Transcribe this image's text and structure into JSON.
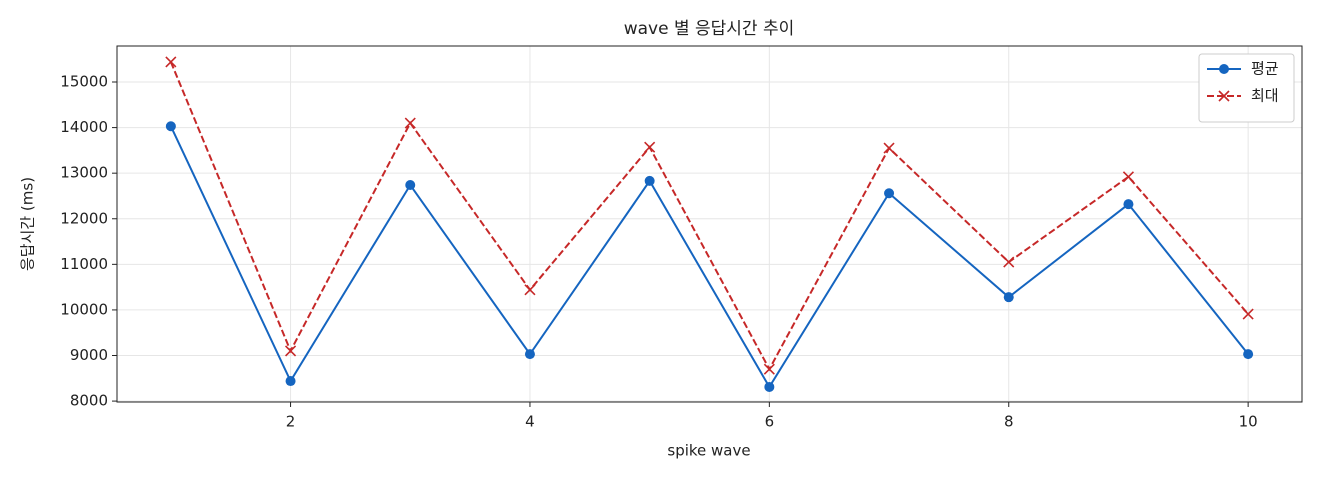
{
  "chart_data": {
    "type": "line",
    "title": "wave 별 응답시간 추이",
    "xlabel": "spike wave",
    "ylabel": "응답시간 (ms)",
    "x": [
      1,
      2,
      3,
      4,
      5,
      6,
      7,
      8,
      9,
      10
    ],
    "series": [
      {
        "name": "평균",
        "color": "#1565c0",
        "marker": "o",
        "linestyle": "solid",
        "values": [
          14030,
          8440,
          12740,
          9030,
          12830,
          8310,
          12560,
          10280,
          12320,
          9030
        ]
      },
      {
        "name": "최대",
        "color": "#c62828",
        "marker": "x",
        "linestyle": "dashed",
        "values": [
          15440,
          9100,
          14100,
          10440,
          13570,
          8700,
          13550,
          11050,
          12920,
          9910
        ]
      }
    ],
    "xlim": [
      0.55,
      10.45
    ],
    "xticks": [
      2,
      4,
      6,
      8,
      10
    ],
    "ylim": [
      7980,
      15790
    ],
    "yticks": [
      8000,
      9000,
      10000,
      11000,
      12000,
      13000,
      14000,
      15000
    ],
    "grid": true,
    "legend": "upper right"
  }
}
